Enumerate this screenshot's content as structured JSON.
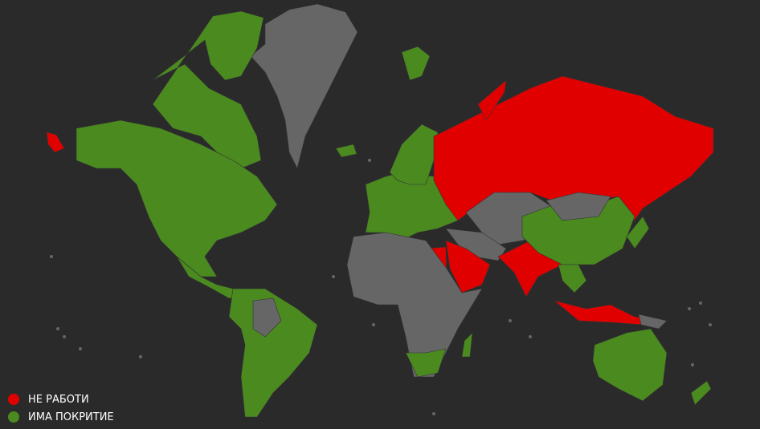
{
  "colors": {
    "background": "#2a2a2a",
    "no_data": "#666666",
    "not_working": "#e00000",
    "has_coverage": "#4a8a1f",
    "border": "#333333"
  },
  "legend": {
    "items": [
      {
        "label": "НЕ РАБОТИ",
        "color": "#e00000"
      },
      {
        "label": "ИМА ПОКРИТИЕ",
        "color": "#4a8a1f"
      }
    ]
  },
  "regions": [
    {
      "name": "greenland",
      "status": "no_data"
    },
    {
      "name": "canada-arctic",
      "status": "has_coverage"
    },
    {
      "name": "north-america",
      "status": "has_coverage"
    },
    {
      "name": "alaska-tip",
      "status": "not_working"
    },
    {
      "name": "central-america",
      "status": "has_coverage"
    },
    {
      "name": "south-america",
      "status": "has_coverage"
    },
    {
      "name": "south-america-north",
      "status": "no_data"
    },
    {
      "name": "iceland",
      "status": "has_coverage"
    },
    {
      "name": "svalbard",
      "status": "has_coverage"
    },
    {
      "name": "europe",
      "status": "has_coverage"
    },
    {
      "name": "scandinavia",
      "status": "has_coverage"
    },
    {
      "name": "russia",
      "status": "not_working"
    },
    {
      "name": "novaya-zemlya",
      "status": "not_working"
    },
    {
      "name": "central-asia",
      "status": "no_data"
    },
    {
      "name": "middle-east",
      "status": "no_data"
    },
    {
      "name": "arabia",
      "status": "not_working"
    },
    {
      "name": "egypt",
      "status": "not_working"
    },
    {
      "name": "africa",
      "status": "no_data"
    },
    {
      "name": "southern-africa",
      "status": "has_coverage"
    },
    {
      "name": "madagascar",
      "status": "has_coverage"
    },
    {
      "name": "india",
      "status": "not_working"
    },
    {
      "name": "china",
      "status": "has_coverage"
    },
    {
      "name": "mongolia",
      "status": "no_data"
    },
    {
      "name": "japan",
      "status": "has_coverage"
    },
    {
      "name": "southeast-asia",
      "status": "has_coverage"
    },
    {
      "name": "indonesia",
      "status": "not_working"
    },
    {
      "name": "papua",
      "status": "no_data"
    },
    {
      "name": "australia",
      "status": "has_coverage"
    },
    {
      "name": "new-zealand",
      "status": "has_coverage"
    }
  ]
}
